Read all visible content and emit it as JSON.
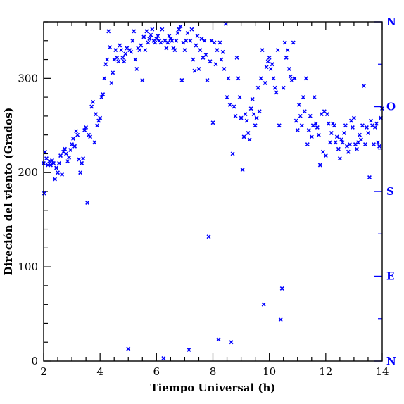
{
  "chart_data": {
    "type": "scatter",
    "xlabel": "Tiempo Universal (h)",
    "ylabel": "Direción del viento (Grados)",
    "xlim": [
      2,
      14
    ],
    "ylim": [
      0,
      360
    ],
    "x_ticks": [
      2,
      4,
      6,
      8,
      10,
      12,
      14
    ],
    "x_tick_labels": [
      "2",
      "4",
      "6",
      "8",
      "10",
      "12",
      "14"
    ],
    "y_ticks": [
      0,
      100,
      200,
      300
    ],
    "y_tick_labels": [
      "0",
      "100",
      "200",
      "300"
    ],
    "right_axis_labels": [
      {
        "label": "N",
        "value": 360
      },
      {
        "label": "O",
        "value": 270
      },
      {
        "label": "S",
        "value": 180
      },
      {
        "label": "E",
        "value": 90
      },
      {
        "label": "N",
        "value": 0
      }
    ],
    "marker": "x",
    "grid": false,
    "series": [
      {
        "color": "#0000ff",
        "points": [
          [
            2.0,
            210
          ],
          [
            2.02,
            178
          ],
          [
            2.05,
            222
          ],
          [
            2.1,
            215
          ],
          [
            2.15,
            208
          ],
          [
            2.2,
            212
          ],
          [
            2.25,
            208
          ],
          [
            2.3,
            213
          ],
          [
            2.35,
            210
          ],
          [
            2.4,
            193
          ],
          [
            2.45,
            205
          ],
          [
            2.5,
            200
          ],
          [
            2.55,
            210
          ],
          [
            2.6,
            218
          ],
          [
            2.65,
            198
          ],
          [
            2.7,
            222
          ],
          [
            2.75,
            225
          ],
          [
            2.8,
            220
          ],
          [
            2.85,
            212
          ],
          [
            2.9,
            216
          ],
          [
            2.95,
            224
          ],
          [
            3.0,
            230
          ],
          [
            3.05,
            236
          ],
          [
            3.1,
            228
          ],
          [
            3.15,
            244
          ],
          [
            3.2,
            240
          ],
          [
            3.25,
            214
          ],
          [
            3.3,
            200
          ],
          [
            3.35,
            210
          ],
          [
            3.4,
            215
          ],
          [
            3.45,
            245
          ],
          [
            3.5,
            248
          ],
          [
            3.55,
            168
          ],
          [
            3.6,
            240
          ],
          [
            3.65,
            238
          ],
          [
            3.7,
            270
          ],
          [
            3.75,
            275
          ],
          [
            3.8,
            232
          ],
          [
            3.85,
            262
          ],
          [
            3.9,
            250
          ],
          [
            3.95,
            255
          ],
          [
            4.0,
            258
          ],
          [
            4.05,
            280
          ],
          [
            4.1,
            283
          ],
          [
            4.15,
            300
          ],
          [
            4.2,
            315
          ],
          [
            4.25,
            320
          ],
          [
            4.3,
            350
          ],
          [
            4.35,
            333
          ],
          [
            4.4,
            295
          ],
          [
            4.45,
            306
          ],
          [
            4.5,
            320
          ],
          [
            4.55,
            330
          ],
          [
            4.6,
            322
          ],
          [
            4.65,
            318
          ],
          [
            4.7,
            335
          ],
          [
            4.75,
            330
          ],
          [
            4.8,
            322
          ],
          [
            4.85,
            318
          ],
          [
            4.9,
            326
          ],
          [
            4.95,
            332
          ],
          [
            5.0,
            13
          ],
          [
            5.05,
            330
          ],
          [
            5.1,
            328
          ],
          [
            5.15,
            340
          ],
          [
            5.2,
            350
          ],
          [
            5.25,
            320
          ],
          [
            5.3,
            310
          ],
          [
            5.35,
            332
          ],
          [
            5.4,
            330
          ],
          [
            5.45,
            335
          ],
          [
            5.5,
            298
          ],
          [
            5.55,
            344
          ],
          [
            5.6,
            330
          ],
          [
            5.65,
            350
          ],
          [
            5.7,
            338
          ],
          [
            5.75,
            342
          ],
          [
            5.8,
            346
          ],
          [
            5.85,
            352
          ],
          [
            5.9,
            340
          ],
          [
            5.95,
            338
          ],
          [
            6.0,
            342
          ],
          [
            6.05,
            345
          ],
          [
            6.1,
            340
          ],
          [
            6.15,
            338
          ],
          [
            6.2,
            352
          ],
          [
            6.25,
            3
          ],
          [
            6.3,
            340
          ],
          [
            6.35,
            332
          ],
          [
            6.4,
            338
          ],
          [
            6.45,
            345
          ],
          [
            6.5,
            342
          ],
          [
            6.55,
            340
          ],
          [
            6.6,
            332
          ],
          [
            6.65,
            330
          ],
          [
            6.7,
            340
          ],
          [
            6.75,
            348
          ],
          [
            6.8,
            352
          ],
          [
            6.85,
            355
          ],
          [
            6.9,
            298
          ],
          [
            6.95,
            338
          ],
          [
            7.0,
            330
          ],
          [
            7.05,
            340
          ],
          [
            7.1,
            348
          ],
          [
            7.15,
            12
          ],
          [
            7.2,
            340
          ],
          [
            7.25,
            352
          ],
          [
            7.3,
            320
          ],
          [
            7.35,
            308
          ],
          [
            7.4,
            335
          ],
          [
            7.45,
            345
          ],
          [
            7.5,
            310
          ],
          [
            7.55,
            330
          ],
          [
            7.6,
            342
          ],
          [
            7.65,
            322
          ],
          [
            7.7,
            340
          ],
          [
            7.75,
            325
          ],
          [
            7.8,
            298
          ],
          [
            7.85,
            132
          ],
          [
            7.9,
            318
          ],
          [
            7.95,
            340
          ],
          [
            8.0,
            253
          ],
          [
            8.05,
            338
          ],
          [
            8.1,
            315
          ],
          [
            8.15,
            330
          ],
          [
            8.2,
            23
          ],
          [
            8.25,
            338
          ],
          [
            8.3,
            320
          ],
          [
            8.35,
            328
          ],
          [
            8.4,
            310
          ],
          [
            8.45,
            358
          ],
          [
            8.5,
            280
          ],
          [
            8.55,
            300
          ],
          [
            8.6,
            272
          ],
          [
            8.65,
            20
          ],
          [
            8.7,
            220
          ],
          [
            8.75,
            270
          ],
          [
            8.8,
            260
          ],
          [
            8.85,
            322
          ],
          [
            8.9,
            300
          ],
          [
            8.95,
            280
          ],
          [
            9.0,
            258
          ],
          [
            9.05,
            203
          ],
          [
            9.1,
            238
          ],
          [
            9.15,
            262
          ],
          [
            9.2,
            255
          ],
          [
            9.25,
            242
          ],
          [
            9.3,
            235
          ],
          [
            9.35,
            268
          ],
          [
            9.4,
            278
          ],
          [
            9.45,
            262
          ],
          [
            9.5,
            250
          ],
          [
            9.55,
            258
          ],
          [
            9.6,
            290
          ],
          [
            9.65,
            265
          ],
          [
            9.7,
            300
          ],
          [
            9.75,
            330
          ],
          [
            9.8,
            60
          ],
          [
            9.85,
            295
          ],
          [
            9.9,
            312
          ],
          [
            9.95,
            318
          ],
          [
            10.0,
            322
          ],
          [
            10.05,
            310
          ],
          [
            10.1,
            315
          ],
          [
            10.15,
            300
          ],
          [
            10.2,
            290
          ],
          [
            10.25,
            285
          ],
          [
            10.3,
            330
          ],
          [
            10.35,
            250
          ],
          [
            10.4,
            44
          ],
          [
            10.45,
            77
          ],
          [
            10.5,
            290
          ],
          [
            10.55,
            338
          ],
          [
            10.6,
            322
          ],
          [
            10.65,
            330
          ],
          [
            10.7,
            310
          ],
          [
            10.75,
            302
          ],
          [
            10.8,
            298
          ],
          [
            10.85,
            338
          ],
          [
            10.9,
            300
          ],
          [
            10.95,
            255
          ],
          [
            11.0,
            245
          ],
          [
            11.05,
            272
          ],
          [
            11.1,
            260
          ],
          [
            11.15,
            250
          ],
          [
            11.2,
            280
          ],
          [
            11.25,
            265
          ],
          [
            11.3,
            300
          ],
          [
            11.35,
            230
          ],
          [
            11.4,
            245
          ],
          [
            11.45,
            260
          ],
          [
            11.5,
            238
          ],
          [
            11.55,
            250
          ],
          [
            11.6,
            280
          ],
          [
            11.65,
            252
          ],
          [
            11.7,
            248
          ],
          [
            11.75,
            240
          ],
          [
            11.8,
            208
          ],
          [
            11.85,
            262
          ],
          [
            11.9,
            222
          ],
          [
            11.95,
            265
          ],
          [
            12.0,
            218
          ],
          [
            12.05,
            262
          ],
          [
            12.1,
            252
          ],
          [
            12.15,
            232
          ],
          [
            12.2,
            242
          ],
          [
            12.25,
            252
          ],
          [
            12.3,
            250
          ],
          [
            12.35,
            232
          ],
          [
            12.4,
            238
          ],
          [
            12.45,
            225
          ],
          [
            12.5,
            215
          ],
          [
            12.55,
            235
          ],
          [
            12.6,
            232
          ],
          [
            12.65,
            242
          ],
          [
            12.7,
            250
          ],
          [
            12.75,
            228
          ],
          [
            12.8,
            222
          ],
          [
            12.85,
            230
          ],
          [
            12.9,
            255
          ],
          [
            12.95,
            248
          ],
          [
            13.0,
            258
          ],
          [
            13.05,
            230
          ],
          [
            13.1,
            225
          ],
          [
            13.15,
            232
          ],
          [
            13.2,
            240
          ],
          [
            13.25,
            235
          ],
          [
            13.3,
            250
          ],
          [
            13.35,
            292
          ],
          [
            13.4,
            230
          ],
          [
            13.45,
            248
          ],
          [
            13.5,
            242
          ],
          [
            13.55,
            195
          ],
          [
            13.6,
            255
          ],
          [
            13.65,
            250
          ],
          [
            13.7,
            230
          ],
          [
            13.75,
            248
          ],
          [
            13.8,
            252
          ],
          [
            13.85,
            232
          ],
          [
            13.9,
            228
          ],
          [
            13.95,
            258
          ],
          [
            14.0,
            268
          ]
        ]
      }
    ]
  },
  "colors": {
    "marker": "#0000ff",
    "right_axis": "#0000ff",
    "frame": "#000000"
  }
}
